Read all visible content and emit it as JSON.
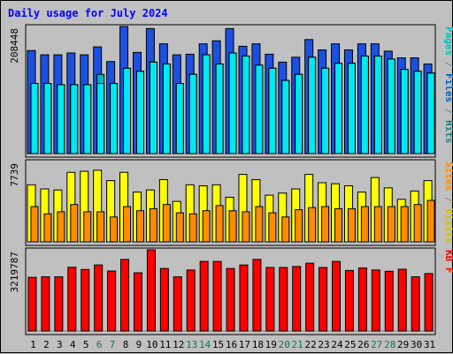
{
  "chart_data": {
    "type": "bar",
    "title": "Daily usage for July 2024",
    "categories": [
      "1",
      "2",
      "3",
      "4",
      "5",
      "6",
      "7",
      "8",
      "9",
      "10",
      "11",
      "12",
      "13",
      "14",
      "15",
      "16",
      "17",
      "18",
      "19",
      "20",
      "21",
      "22",
      "23",
      "24",
      "25",
      "26",
      "27",
      "28",
      "29",
      "30",
      "31"
    ],
    "weekend_days": [
      "6",
      "7",
      "13",
      "14",
      "20",
      "21",
      "27",
      "28"
    ],
    "panels": [
      {
        "key": "hits_panel",
        "ymax_label": "208448",
        "ymax": 208448,
        "side_labels": [
          {
            "text": "Pages",
            "color": "#00c0c0"
          },
          {
            "text": " / ",
            "color": "#5090a0"
          },
          {
            "text": "Files",
            "color": "#0060c0"
          },
          {
            "text": " / ",
            "color": "#5090a0"
          },
          {
            "text": "Hits",
            "color": "#208080"
          }
        ],
        "series": [
          {
            "key": "hits",
            "color": "#1b50e0",
            "values": [
              169000,
              162000,
              162000,
              165000,
              162000,
              175000,
              151000,
              208448,
              166000,
              205000,
              180000,
              162000,
              163000,
              180000,
              185000,
              205000,
              176000,
              180000,
              163000,
              150000,
              158000,
              187000,
              170000,
              180000,
              170000,
              180000,
              180000,
              168000,
              157000,
              157000,
              147000
            ]
          },
          {
            "key": "files",
            "color": "#00b8c0",
            "values": [
              115000,
              115000,
              113000,
              113000,
              113000,
              130000,
              115000,
              140000,
              135000,
              150000,
              147000,
              115000,
              130000,
              162000,
              147000,
              165000,
              160000,
              145000,
              140000,
              120000,
              130000,
              158000,
              140000,
              148000,
              148000,
              160000,
              160000,
              155000,
              138000,
              135000,
              132000
            ]
          },
          {
            "key": "pages",
            "color": "#00e8f0",
            "values": [
              115000,
              115000,
              113000,
              113000,
              113000,
              115000,
              115000,
              140000,
              135000,
              150000,
              147000,
              115000,
              130000,
              162000,
              147000,
              165000,
              160000,
              145000,
              140000,
              120000,
              130000,
              158000,
              140000,
              148000,
              148000,
              160000,
              160000,
              155000,
              138000,
              135000,
              132000
            ]
          }
        ]
      },
      {
        "key": "visits_panel",
        "ymax_label": "7739",
        "ymax": 7739,
        "side_labels": [
          {
            "text": "Sites",
            "color": "#ff8c00"
          },
          {
            "text": " / ",
            "color": "#b08050"
          },
          {
            "text": "Visits",
            "color": "#d0c000"
          }
        ],
        "series": [
          {
            "key": "visits",
            "color": "#ffff00",
            "values": [
              5500,
              5100,
              5000,
              6700,
              6800,
              6900,
              5900,
              6700,
              4800,
              5000,
              6000,
              3900,
              5500,
              5400,
              5500,
              4300,
              6500,
              6000,
              4500,
              4700,
              5100,
              6500,
              5700,
              5600,
              5400,
              4800,
              6200,
              5200,
              4100,
              4900,
              5900
            ]
          },
          {
            "key": "sites",
            "color": "#ff8c00",
            "values": [
              3400,
              2700,
              2900,
              3600,
              2900,
              2900,
              2400,
              3400,
              3000,
              3200,
              3600,
              2800,
              2700,
              3000,
              3500,
              3000,
              2900,
              3400,
              2800,
              2400,
              3100,
              3300,
              3400,
              3200,
              3200,
              3400,
              3400,
              3400,
              3400,
              3600,
              4000
            ]
          }
        ]
      },
      {
        "key": "kb_panel",
        "ymax_label": "3219787",
        "ymax": 3219787,
        "side_labels": [
          {
            "text": "KB F",
            "color": "#ff0000"
          }
        ],
        "series": [
          {
            "key": "kbf",
            "color": "#ff0000",
            "values": [
              2130000,
              2150000,
              2150000,
              2530000,
              2440000,
              2620000,
              2380000,
              2840000,
              2310000,
              3219787,
              2480000,
              2150000,
              2420000,
              2760000,
              2760000,
              2480000,
              2620000,
              2840000,
              2520000,
              2520000,
              2560000,
              2690000,
              2520000,
              2760000,
              2400000,
              2500000,
              2420000,
              2370000,
              2450000,
              2150000,
              2280000
            ]
          }
        ]
      }
    ],
    "colors": {
      "background": "#c0c0c0",
      "plot_bg": "#c0c0c0",
      "title": "#0000ff",
      "label": "#000000",
      "weekend": "#008040"
    }
  }
}
